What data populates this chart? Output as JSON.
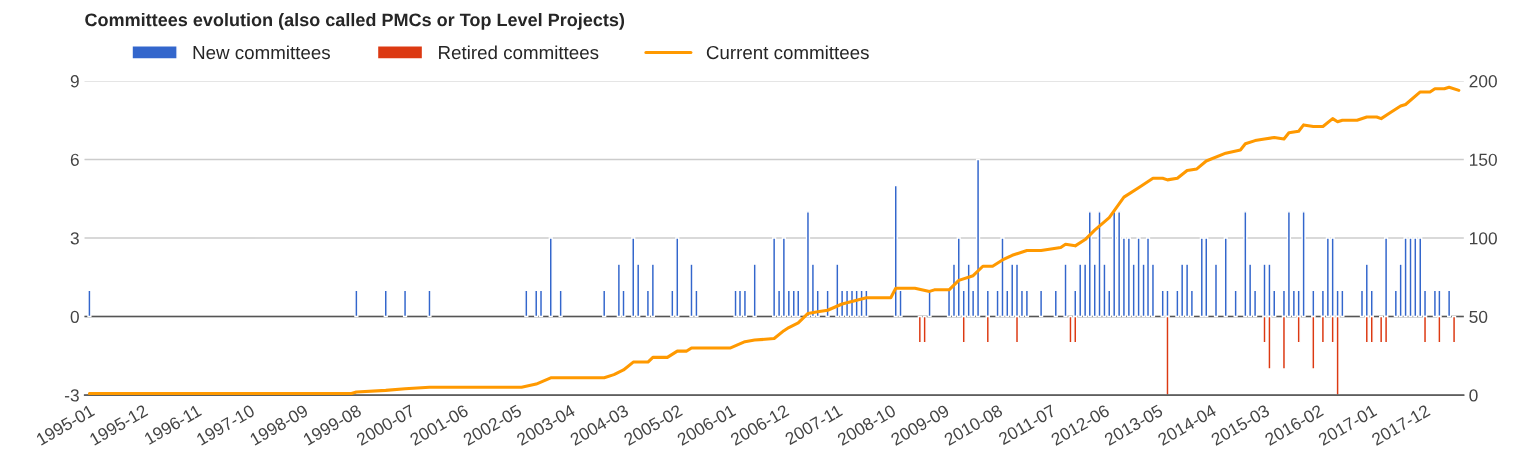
{
  "chart_data": {
    "type": "bar",
    "title": "Committees evolution (also called PMCs or Top Level Projects)",
    "xlim": [
      "1994-12",
      "2018-08"
    ],
    "xticks": [
      "1995-01",
      "1995-12",
      "1996-11",
      "1997-10",
      "1998-09",
      "1999-08",
      "2000-07",
      "2001-06",
      "2002-05",
      "2003-04",
      "2004-03",
      "2005-02",
      "2006-01",
      "2006-12",
      "2007-11",
      "2008-10",
      "2009-09",
      "2010-08",
      "2011-07",
      "2012-06",
      "2013-05",
      "2014-04",
      "2015-03",
      "2016-02",
      "2017-01",
      "2017-12"
    ],
    "ylim": [
      -3,
      9
    ],
    "yticks": [
      -3,
      0,
      3,
      6,
      9
    ],
    "y2lim": [
      0,
      200
    ],
    "y2ticks": [
      0,
      50,
      100,
      150,
      200
    ],
    "grid": "y",
    "legend": "top left",
    "series": [
      {
        "name": "New committees",
        "color": "#3366cc",
        "x": [
          "1995-01",
          "1999-08",
          "2000-02",
          "2000-06",
          "2000-11",
          "2002-07",
          "2002-09",
          "2002-10",
          "2002-12",
          "2003-02",
          "2003-11",
          "2004-02",
          "2004-03",
          "2004-05",
          "2004-06",
          "2004-08",
          "2004-09",
          "2005-01",
          "2005-02",
          "2005-05",
          "2005-06",
          "2006-02",
          "2006-03",
          "2006-04",
          "2006-06",
          "2006-10",
          "2006-11",
          "2006-12",
          "2007-01",
          "2007-02",
          "2007-03",
          "2007-05",
          "2007-06",
          "2007-07",
          "2007-09",
          "2007-11",
          "2007-12",
          "2008-01",
          "2008-02",
          "2008-03",
          "2008-04",
          "2008-05",
          "2008-11",
          "2008-12",
          "2009-06",
          "2009-10",
          "2009-11",
          "2009-12",
          "2010-01",
          "2010-02",
          "2010-03",
          "2010-04",
          "2010-06",
          "2010-08",
          "2010-09",
          "2010-10",
          "2010-11",
          "2010-12",
          "2011-01",
          "2011-02",
          "2011-05",
          "2011-08",
          "2011-10",
          "2011-12",
          "2012-01",
          "2012-02",
          "2012-03",
          "2012-04",
          "2012-05",
          "2012-06",
          "2012-07",
          "2012-08",
          "2012-09",
          "2012-10",
          "2012-11",
          "2012-12",
          "2013-01",
          "2013-02",
          "2013-03",
          "2013-04",
          "2013-06",
          "2013-07",
          "2013-09",
          "2013-10",
          "2013-11",
          "2013-12",
          "2014-02",
          "2014-03",
          "2014-05",
          "2014-07",
          "2014-09",
          "2014-11",
          "2014-12",
          "2015-01",
          "2015-03",
          "2015-04",
          "2015-05",
          "2015-07",
          "2015-08",
          "2015-09",
          "2015-10",
          "2015-11",
          "2016-01",
          "2016-03",
          "2016-04",
          "2016-05",
          "2016-06",
          "2016-07",
          "2016-11",
          "2016-12",
          "2017-01",
          "2017-04",
          "2017-06",
          "2017-07",
          "2017-08",
          "2017-09",
          "2017-10",
          "2017-11",
          "2017-12",
          "2018-02",
          "2018-03",
          "2018-05"
        ],
        "values": [
          1,
          1,
          1,
          1,
          1,
          1,
          1,
          1,
          3,
          1,
          1,
          2,
          1,
          3,
          2,
          1,
          2,
          1,
          3,
          2,
          1,
          1,
          1,
          1,
          2,
          3,
          1,
          3,
          1,
          1,
          1,
          4,
          2,
          1,
          1,
          2,
          1,
          1,
          1,
          1,
          1,
          1,
          5,
          1,
          1,
          1,
          2,
          3,
          1,
          2,
          1,
          6,
          1,
          1,
          3,
          1,
          2,
          2,
          1,
          1,
          1,
          1,
          2,
          1,
          2,
          2,
          4,
          2,
          4,
          2,
          1,
          4,
          4,
          3,
          3,
          2,
          3,
          2,
          3,
          2,
          1,
          1,
          1,
          2,
          2,
          1,
          3,
          3,
          2,
          3,
          1,
          4,
          2,
          1,
          2,
          2,
          1,
          1,
          4,
          1,
          1,
          4,
          1,
          1,
          3,
          3,
          1,
          1,
          1,
          2,
          1,
          3,
          1,
          2,
          3,
          3,
          3,
          3,
          1,
          1,
          1,
          1
        ]
      },
      {
        "name": "Retired committees",
        "color": "#dc3912",
        "x": [
          "2009-04",
          "2009-05",
          "2010-01",
          "2010-06",
          "2010-12",
          "2011-11",
          "2011-12",
          "2013-07",
          "2015-03",
          "2015-04",
          "2015-07",
          "2015-10",
          "2016-01",
          "2016-03",
          "2016-05",
          "2016-06",
          "2016-12",
          "2017-01",
          "2017-03",
          "2017-04",
          "2017-12",
          "2018-03",
          "2018-06"
        ],
        "values": [
          -1,
          -1,
          -1,
          -1,
          -1,
          -1,
          -1,
          -3,
          -1,
          -2,
          -2,
          -1,
          -2,
          -1,
          -1,
          -3,
          -1,
          -1,
          -1,
          -1,
          -1,
          -1,
          -1
        ]
      },
      {
        "name": "Current committees",
        "type": "line",
        "axis": "y2",
        "color": "#ff9900",
        "x": [
          "1995-01",
          "1999-07",
          "1999-08",
          "2000-02",
          "2000-06",
          "2000-11",
          "2002-06",
          "2002-09",
          "2002-12",
          "2003-11",
          "2004-01",
          "2004-03",
          "2004-05",
          "2004-08",
          "2004-09",
          "2004-12",
          "2005-02",
          "2005-04",
          "2005-05",
          "2006-01",
          "2006-04",
          "2006-06",
          "2006-10",
          "2006-12",
          "2007-01",
          "2007-03",
          "2007-05",
          "2007-07",
          "2007-09",
          "2007-12",
          "2008-05",
          "2008-10",
          "2008-11",
          "2009-03",
          "2009-06",
          "2009-07",
          "2009-10",
          "2009-12",
          "2010-03",
          "2010-05",
          "2010-07",
          "2010-09",
          "2010-11",
          "2011-02",
          "2011-05",
          "2011-09",
          "2011-10",
          "2011-12",
          "2012-02",
          "2012-04",
          "2012-07",
          "2012-10",
          "2013-01",
          "2013-04",
          "2013-06",
          "2013-07",
          "2013-09",
          "2013-11",
          "2014-01",
          "2014-03",
          "2014-07",
          "2014-10",
          "2014-11",
          "2015-01",
          "2015-03",
          "2015-05",
          "2015-07",
          "2015-08",
          "2015-10",
          "2015-11",
          "2016-01",
          "2016-03",
          "2016-05",
          "2016-06",
          "2016-07",
          "2016-10",
          "2016-12",
          "2017-02",
          "2017-03",
          "2017-05",
          "2017-07",
          "2017-08",
          "2017-11",
          "2018-01",
          "2018-02",
          "2018-04",
          "2018-05",
          "2018-07"
        ],
        "values": [
          1,
          1,
          2,
          3,
          4,
          5,
          5,
          7,
          11,
          11,
          13,
          16,
          21,
          21,
          24,
          24,
          28,
          28,
          30,
          30,
          34,
          35,
          36,
          41,
          43,
          46,
          52,
          53,
          54,
          58,
          62,
          62,
          68,
          68,
          66,
          67,
          67,
          73,
          76,
          82,
          82,
          86,
          89,
          92,
          92,
          94,
          96,
          95,
          99,
          105,
          113,
          126,
          132,
          138,
          138,
          137,
          138,
          143,
          144,
          149,
          154,
          156,
          160,
          162,
          163,
          164,
          163,
          167,
          168,
          172,
          171,
          171,
          176,
          174,
          175,
          175,
          177,
          177,
          176,
          180,
          184,
          185,
          193,
          193,
          195,
          195,
          196,
          194
        ]
      }
    ]
  }
}
